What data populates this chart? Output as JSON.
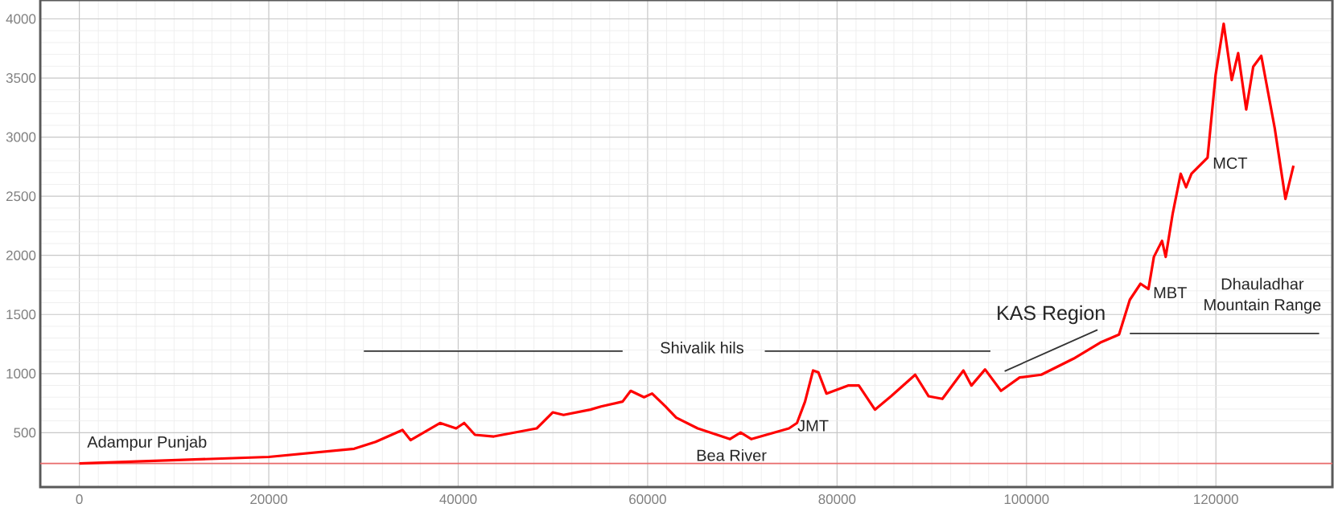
{
  "chart_data": {
    "type": "line",
    "xlim": [
      -4130,
      132300
    ],
    "ylim": [
      40,
      4160
    ],
    "xticks": [
      0,
      20000,
      40000,
      60000,
      80000,
      100000,
      120000
    ],
    "yticks": [
      500,
      1000,
      1500,
      2000,
      2500,
      3000,
      3500,
      4000
    ],
    "grid": true,
    "marker": "none",
    "line_style": "solid",
    "series": [
      {
        "color": "#ff0000",
        "x": [
          0,
          20000,
          29020,
          31280,
          34120,
          34970,
          38080,
          39780,
          40630,
          41770,
          43760,
          48280,
          49980,
          51120,
          53960,
          55080,
          57360,
          58210,
          59620,
          60470,
          61880,
          63020,
          65290,
          68680,
          69820,
          70960,
          74920,
          75770,
          76620,
          77470,
          78030,
          78880,
          81160,
          82300,
          84000,
          85700,
          88250,
          89670,
          91120,
          93340,
          94190,
          95630,
          97310,
          99280,
          101560,
          104960,
          107780,
          109770,
          110910,
          112040,
          112880,
          113450,
          114310,
          114700,
          115430,
          116280,
          116850,
          117420,
          119120,
          119970,
          120820,
          121670,
          122350,
          123200,
          123940,
          124790,
          126210,
          127340,
          128190
        ],
        "values": [
          240,
          295,
          364,
          423,
          523,
          437,
          582,
          536,
          582,
          482,
          468,
          536,
          672,
          650,
          695,
          722,
          763,
          854,
          800,
          831,
          722,
          627,
          536,
          446,
          501,
          446,
          536,
          582,
          763,
          1026,
          1010,
          831,
          899,
          899,
          695,
          808,
          990,
          808,
          786,
          1026,
          899,
          1035,
          854,
          967,
          990,
          1126,
          1262,
          1330,
          1624,
          1760,
          1715,
          1987,
          2123,
          1987,
          2350,
          2690,
          2576,
          2690,
          2826,
          3528,
          3959,
          3483,
          3710,
          3234,
          3596,
          3687,
          3075,
          2477,
          2758
        ]
      },
      {
        "color": "#333333",
        "x": [
          30040,
          57360
        ],
        "values": [
          1190,
          1190
        ]
      },
      {
        "color": "#333333",
        "x": [
          72370,
          96190
        ],
        "values": [
          1190,
          1190
        ]
      },
      {
        "color": "#333333",
        "x": [
          110910,
          130900
        ],
        "values": [
          1340,
          1340
        ]
      },
      {
        "color": "#333333",
        "x": [
          97690,
          107500
        ],
        "values": [
          1020,
          1370
        ]
      }
    ],
    "ref_lines": [
      {
        "axis": "y",
        "value": 240,
        "color": "#e86a6a"
      }
    ],
    "annotations": [
      "Adampur Punjab",
      "Shivalik hils",
      "Bea River",
      "JMT",
      "KAS Region",
      "MBT",
      "MCT",
      "Dhauladhar",
      "Mountain Range"
    ]
  }
}
